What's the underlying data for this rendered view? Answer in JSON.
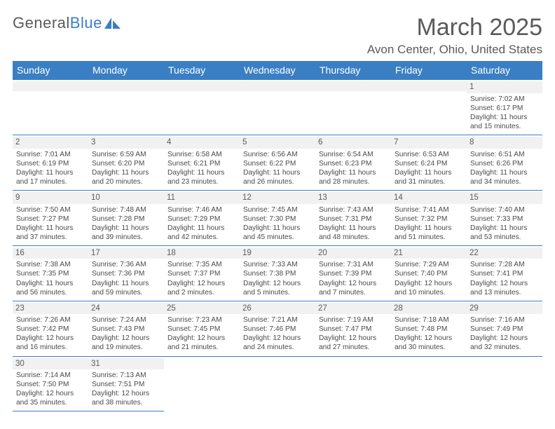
{
  "branding": {
    "text1": "General",
    "text2": "Blue",
    "accent": "#3a7fc4"
  },
  "title": "March 2025",
  "location": "Avon Center, Ohio, United States",
  "headers": [
    "Sunday",
    "Monday",
    "Tuesday",
    "Wednesday",
    "Thursday",
    "Friday",
    "Saturday"
  ],
  "colors": {
    "header_bg": "#3a7fc4",
    "header_fg": "#ffffff",
    "daynum_bg": "#f1f1f1",
    "body_bg": "#ffffff",
    "text": "#4a4a4a",
    "rule": "#3a7fc4"
  },
  "fonts": {
    "title_size": 34,
    "subtitle_size": 17,
    "header_size": 14,
    "cell_size": 10.2,
    "daynum_size": 11.5
  },
  "weeks": [
    [
      null,
      null,
      null,
      null,
      null,
      null,
      {
        "n": "1",
        "sr": "Sunrise: 7:02 AM",
        "ss": "Sunset: 6:17 PM",
        "dl": "Daylight: 11 hours and 15 minutes."
      }
    ],
    [
      {
        "n": "2",
        "sr": "Sunrise: 7:01 AM",
        "ss": "Sunset: 6:19 PM",
        "dl": "Daylight: 11 hours and 17 minutes."
      },
      {
        "n": "3",
        "sr": "Sunrise: 6:59 AM",
        "ss": "Sunset: 6:20 PM",
        "dl": "Daylight: 11 hours and 20 minutes."
      },
      {
        "n": "4",
        "sr": "Sunrise: 6:58 AM",
        "ss": "Sunset: 6:21 PM",
        "dl": "Daylight: 11 hours and 23 minutes."
      },
      {
        "n": "5",
        "sr": "Sunrise: 6:56 AM",
        "ss": "Sunset: 6:22 PM",
        "dl": "Daylight: 11 hours and 26 minutes."
      },
      {
        "n": "6",
        "sr": "Sunrise: 6:54 AM",
        "ss": "Sunset: 6:23 PM",
        "dl": "Daylight: 11 hours and 28 minutes."
      },
      {
        "n": "7",
        "sr": "Sunrise: 6:53 AM",
        "ss": "Sunset: 6:24 PM",
        "dl": "Daylight: 11 hours and 31 minutes."
      },
      {
        "n": "8",
        "sr": "Sunrise: 6:51 AM",
        "ss": "Sunset: 6:26 PM",
        "dl": "Daylight: 11 hours and 34 minutes."
      }
    ],
    [
      {
        "n": "9",
        "sr": "Sunrise: 7:50 AM",
        "ss": "Sunset: 7:27 PM",
        "dl": "Daylight: 11 hours and 37 minutes."
      },
      {
        "n": "10",
        "sr": "Sunrise: 7:48 AM",
        "ss": "Sunset: 7:28 PM",
        "dl": "Daylight: 11 hours and 39 minutes."
      },
      {
        "n": "11",
        "sr": "Sunrise: 7:46 AM",
        "ss": "Sunset: 7:29 PM",
        "dl": "Daylight: 11 hours and 42 minutes."
      },
      {
        "n": "12",
        "sr": "Sunrise: 7:45 AM",
        "ss": "Sunset: 7:30 PM",
        "dl": "Daylight: 11 hours and 45 minutes."
      },
      {
        "n": "13",
        "sr": "Sunrise: 7:43 AM",
        "ss": "Sunset: 7:31 PM",
        "dl": "Daylight: 11 hours and 48 minutes."
      },
      {
        "n": "14",
        "sr": "Sunrise: 7:41 AM",
        "ss": "Sunset: 7:32 PM",
        "dl": "Daylight: 11 hours and 51 minutes."
      },
      {
        "n": "15",
        "sr": "Sunrise: 7:40 AM",
        "ss": "Sunset: 7:33 PM",
        "dl": "Daylight: 11 hours and 53 minutes."
      }
    ],
    [
      {
        "n": "16",
        "sr": "Sunrise: 7:38 AM",
        "ss": "Sunset: 7:35 PM",
        "dl": "Daylight: 11 hours and 56 minutes."
      },
      {
        "n": "17",
        "sr": "Sunrise: 7:36 AM",
        "ss": "Sunset: 7:36 PM",
        "dl": "Daylight: 11 hours and 59 minutes."
      },
      {
        "n": "18",
        "sr": "Sunrise: 7:35 AM",
        "ss": "Sunset: 7:37 PM",
        "dl": "Daylight: 12 hours and 2 minutes."
      },
      {
        "n": "19",
        "sr": "Sunrise: 7:33 AM",
        "ss": "Sunset: 7:38 PM",
        "dl": "Daylight: 12 hours and 5 minutes."
      },
      {
        "n": "20",
        "sr": "Sunrise: 7:31 AM",
        "ss": "Sunset: 7:39 PM",
        "dl": "Daylight: 12 hours and 7 minutes."
      },
      {
        "n": "21",
        "sr": "Sunrise: 7:29 AM",
        "ss": "Sunset: 7:40 PM",
        "dl": "Daylight: 12 hours and 10 minutes."
      },
      {
        "n": "22",
        "sr": "Sunrise: 7:28 AM",
        "ss": "Sunset: 7:41 PM",
        "dl": "Daylight: 12 hours and 13 minutes."
      }
    ],
    [
      {
        "n": "23",
        "sr": "Sunrise: 7:26 AM",
        "ss": "Sunset: 7:42 PM",
        "dl": "Daylight: 12 hours and 16 minutes."
      },
      {
        "n": "24",
        "sr": "Sunrise: 7:24 AM",
        "ss": "Sunset: 7:43 PM",
        "dl": "Daylight: 12 hours and 19 minutes."
      },
      {
        "n": "25",
        "sr": "Sunrise: 7:23 AM",
        "ss": "Sunset: 7:45 PM",
        "dl": "Daylight: 12 hours and 21 minutes."
      },
      {
        "n": "26",
        "sr": "Sunrise: 7:21 AM",
        "ss": "Sunset: 7:46 PM",
        "dl": "Daylight: 12 hours and 24 minutes."
      },
      {
        "n": "27",
        "sr": "Sunrise: 7:19 AM",
        "ss": "Sunset: 7:47 PM",
        "dl": "Daylight: 12 hours and 27 minutes."
      },
      {
        "n": "28",
        "sr": "Sunrise: 7:18 AM",
        "ss": "Sunset: 7:48 PM",
        "dl": "Daylight: 12 hours and 30 minutes."
      },
      {
        "n": "29",
        "sr": "Sunrise: 7:16 AM",
        "ss": "Sunset: 7:49 PM",
        "dl": "Daylight: 12 hours and 32 minutes."
      }
    ],
    [
      {
        "n": "30",
        "sr": "Sunrise: 7:14 AM",
        "ss": "Sunset: 7:50 PM",
        "dl": "Daylight: 12 hours and 35 minutes."
      },
      {
        "n": "31",
        "sr": "Sunrise: 7:13 AM",
        "ss": "Sunset: 7:51 PM",
        "dl": "Daylight: 12 hours and 38 minutes."
      },
      null,
      null,
      null,
      null,
      null
    ]
  ]
}
